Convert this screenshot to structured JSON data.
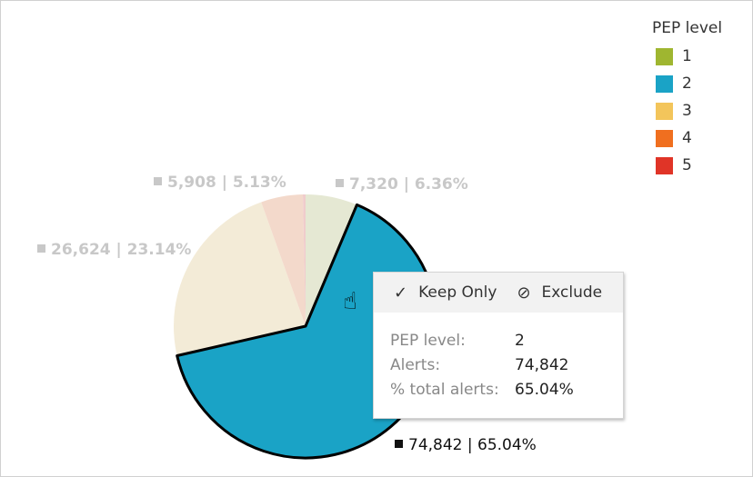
{
  "chart_data": {
    "type": "pie",
    "legend": {
      "title": "PEP level",
      "position": "top-right"
    },
    "slices": [
      {
        "category": "1",
        "value": 7320,
        "percent": 6.36,
        "label": "7,320 | 6.36%",
        "color": "#9fb630",
        "faded": "#e5e8d3"
      },
      {
        "category": "2",
        "value": 74842,
        "percent": 65.04,
        "label": "74,842 | 65.04%",
        "color": "#1aa3c6",
        "faded": "#1aa3c6",
        "selected": true
      },
      {
        "category": "3",
        "value": 26624,
        "percent": 23.14,
        "label": "26,624 | 23.14%",
        "color": "#f3c55b",
        "faded": "#f3ebd7"
      },
      {
        "category": "4",
        "value": 5908,
        "percent": 5.13,
        "label": "5,908 | 5.13%",
        "color": "#f06f1f",
        "faded": "#f3d9cb"
      },
      {
        "category": "5",
        "value": 380,
        "percent": 0.33,
        "label": "",
        "color": "#e03427",
        "faded": "#f0cccc"
      }
    ]
  },
  "tooltip": {
    "keep_only": "Keep Only",
    "exclude": "Exclude",
    "rows": [
      {
        "key": "PEP level:",
        "value": "2"
      },
      {
        "key": "Alerts:",
        "value": "74,842"
      },
      {
        "key": "% total alerts:",
        "value": "65.04%"
      }
    ]
  }
}
